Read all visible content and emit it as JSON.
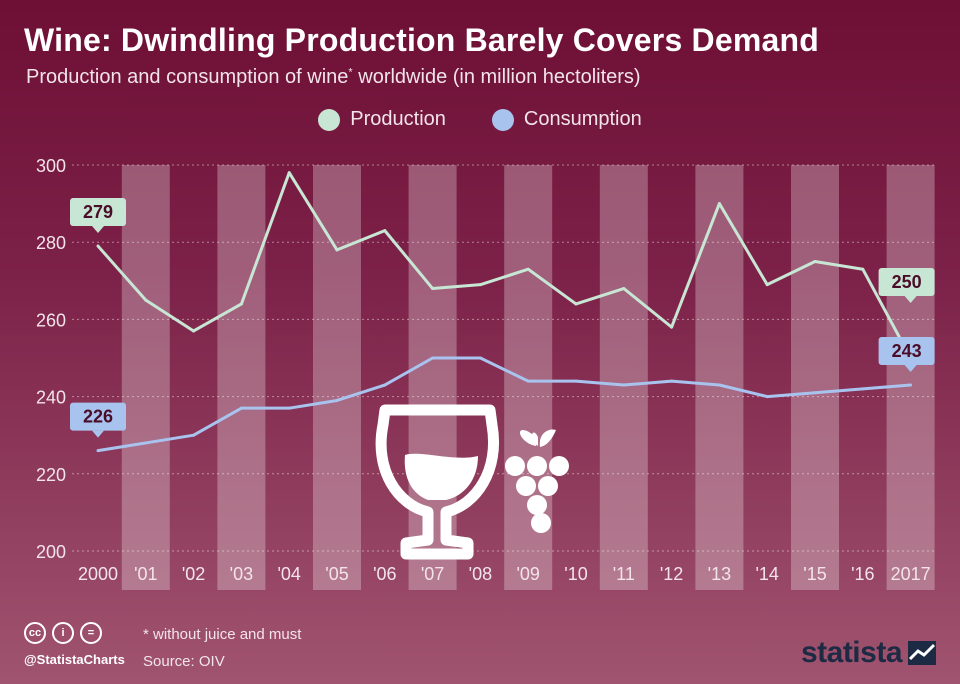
{
  "title": "Wine: Dwindling Production Barely Covers Demand",
  "subtitle": "Production and consumption of wine",
  "subtitle_sup": "*",
  "subtitle_rest": " worldwide (in million hectoliters)",
  "legend": [
    {
      "label": "Production",
      "color": "#c8e6d4"
    },
    {
      "label": "Consumption",
      "color": "#a9c3ef"
    }
  ],
  "footer": {
    "handle": "@StatistaCharts",
    "note": "* without juice and must",
    "source": "Source: OIV",
    "logo": "statista"
  },
  "icons": [
    "cc-icon",
    "attribution-icon",
    "no-derivatives-icon",
    "wine-glass-icon",
    "grapes-icon"
  ],
  "chart_data": {
    "type": "line",
    "categories": [
      "2000",
      "'01",
      "'02",
      "'03",
      "'04",
      "'05",
      "'06",
      "'07",
      "'08",
      "'09",
      "'10",
      "'11",
      "'12",
      "'13",
      "'14",
      "'15",
      "'16",
      "2017"
    ],
    "series": [
      {
        "name": "Production",
        "color": "#c8e6d4",
        "values": [
          279,
          265,
          257,
          264,
          298,
          278,
          283,
          268,
          269,
          273,
          264,
          268,
          258,
          290,
          269,
          275,
          273,
          250
        ]
      },
      {
        "name": "Consumption",
        "color": "#a9c3ef",
        "values": [
          226,
          228,
          230,
          237,
          237,
          239,
          243,
          250,
          250,
          244,
          244,
          243,
          244,
          243,
          240,
          241,
          242,
          243
        ]
      }
    ],
    "yticks": [
      200,
      220,
      240,
      260,
      280,
      300
    ],
    "ylim": [
      200,
      300
    ],
    "grid": true,
    "callouts": [
      {
        "series": 0,
        "index": 0,
        "label": "279"
      },
      {
        "series": 0,
        "index": 17,
        "label": "250"
      },
      {
        "series": 1,
        "index": 0,
        "label": "226"
      },
      {
        "series": 1,
        "index": 17,
        "label": "243"
      }
    ],
    "legend_position": "top-center"
  }
}
